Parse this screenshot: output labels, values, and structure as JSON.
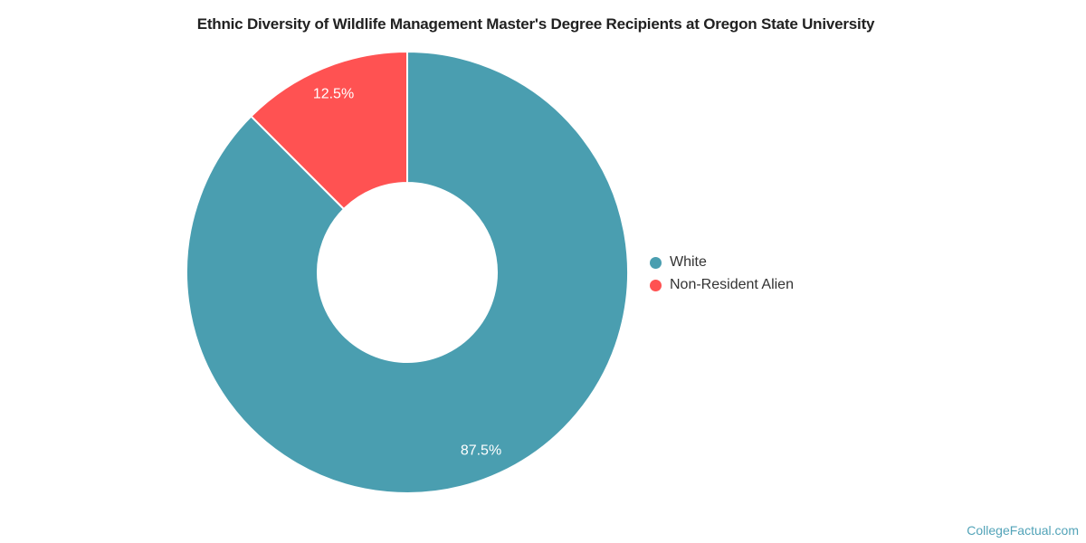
{
  "title": {
    "text": "Ethnic Diversity of Wildlife Management Master's Degree Recipients at Oregon State University"
  },
  "footer": {
    "text": "CollegeFactual.com"
  },
  "colors": {
    "teal": "#4A9EB0",
    "red": "#FF5252",
    "title_text": "#212121",
    "legend_text": "#333333",
    "footer_link": "#52A3B8",
    "slice_label_text": "#FFFFFF",
    "background": "#FFFFFF"
  },
  "chart_data": {
    "type": "pie",
    "subtype": "donut",
    "title": "Ethnic Diversity of Wildlife Management Master's Degree Recipients at Oregon State University",
    "slices": [
      {
        "label": "White",
        "value": 87.5,
        "display": "87.5%",
        "color": "#4A9EB0"
      },
      {
        "label": "Non-Resident Alien",
        "value": 12.5,
        "display": "12.5%",
        "color": "#FF5252"
      }
    ],
    "start_angle_deg": 0,
    "direction": "clockwise",
    "inner_radius_ratio": 0.41,
    "slice_border": "2px white",
    "data_labels_position": "inside",
    "legend_position": "right",
    "grid": false
  }
}
